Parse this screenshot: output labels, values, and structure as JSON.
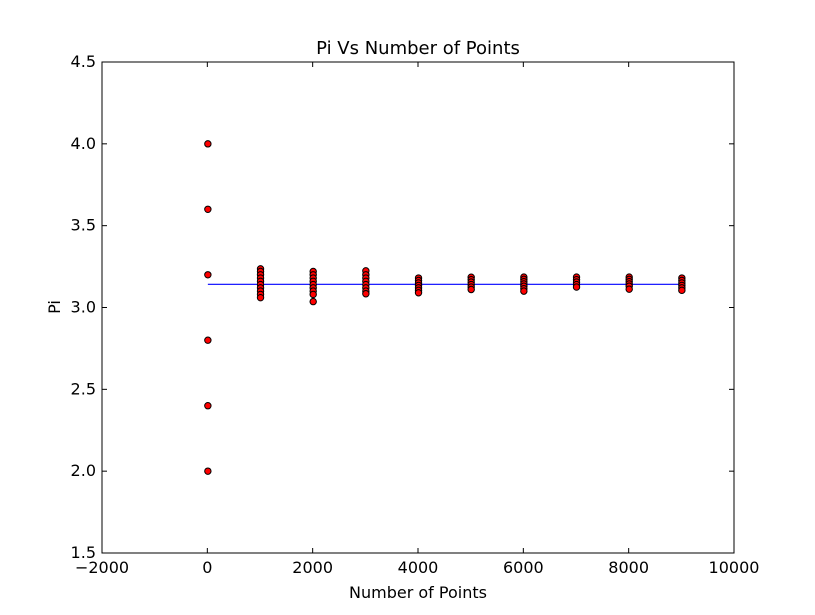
{
  "chart_data": {
    "type": "scatter",
    "title": "Pi Vs Number of Points",
    "xlabel": "Number of Points",
    "ylabel": "Pi",
    "xlim": [
      -2000,
      10000
    ],
    "ylim": [
      1.5,
      4.5
    ],
    "xticks": [
      -2000,
      0,
      2000,
      4000,
      6000,
      8000,
      10000
    ],
    "xtick_labels": [
      "−2000",
      "0",
      "2000",
      "4000",
      "6000",
      "8000",
      "10000"
    ],
    "yticks": [
      1.5,
      2.0,
      2.5,
      3.0,
      3.5,
      4.0,
      4.5
    ],
    "ytick_labels": [
      "1.5",
      "2.0",
      "2.5",
      "3.0",
      "3.5",
      "4.0",
      "4.5"
    ],
    "grid": false,
    "series": [
      {
        "type": "scatter",
        "color": "#ff0000",
        "edgecolor": "#000000",
        "points": [
          [
            10,
            4.0
          ],
          [
            10,
            3.6
          ],
          [
            10,
            3.2
          ],
          [
            10,
            2.8
          ],
          [
            10,
            2.4
          ],
          [
            10,
            2.0
          ],
          [
            1010,
            3.236
          ],
          [
            1010,
            3.22
          ],
          [
            1010,
            3.2
          ],
          [
            1010,
            3.18
          ],
          [
            1010,
            3.16
          ],
          [
            1010,
            3.14
          ],
          [
            1010,
            3.12
          ],
          [
            1010,
            3.1
          ],
          [
            1010,
            3.08
          ],
          [
            1010,
            3.06
          ],
          [
            2010,
            3.22
          ],
          [
            2010,
            3.2
          ],
          [
            2010,
            3.18
          ],
          [
            2010,
            3.16
          ],
          [
            2010,
            3.14
          ],
          [
            2010,
            3.12
          ],
          [
            2010,
            3.1
          ],
          [
            2010,
            3.08
          ],
          [
            2010,
            3.036
          ],
          [
            3010,
            3.224
          ],
          [
            3010,
            3.2
          ],
          [
            3010,
            3.18
          ],
          [
            3010,
            3.16
          ],
          [
            3010,
            3.14
          ],
          [
            3010,
            3.12
          ],
          [
            3010,
            3.1
          ],
          [
            3010,
            3.084
          ],
          [
            4010,
            3.18
          ],
          [
            4010,
            3.165
          ],
          [
            4010,
            3.15
          ],
          [
            4010,
            3.135
          ],
          [
            4010,
            3.12
          ],
          [
            4010,
            3.105
          ],
          [
            4010,
            3.09
          ],
          [
            5010,
            3.185
          ],
          [
            5010,
            3.17
          ],
          [
            5010,
            3.155
          ],
          [
            5010,
            3.14
          ],
          [
            5010,
            3.125
          ],
          [
            5010,
            3.11
          ],
          [
            6010,
            3.186
          ],
          [
            6010,
            3.172
          ],
          [
            6010,
            3.158
          ],
          [
            6010,
            3.144
          ],
          [
            6010,
            3.13
          ],
          [
            6010,
            3.115
          ],
          [
            6010,
            3.1
          ],
          [
            7010,
            3.186
          ],
          [
            7010,
            3.17
          ],
          [
            7010,
            3.155
          ],
          [
            7010,
            3.14
          ],
          [
            7010,
            3.125
          ],
          [
            8010,
            3.186
          ],
          [
            8010,
            3.172
          ],
          [
            8010,
            3.158
          ],
          [
            8010,
            3.144
          ],
          [
            8010,
            3.13
          ],
          [
            8010,
            3.112
          ],
          [
            9010,
            3.18
          ],
          [
            9010,
            3.165
          ],
          [
            9010,
            3.15
          ],
          [
            9010,
            3.135
          ],
          [
            9010,
            3.12
          ],
          [
            9010,
            3.105
          ]
        ]
      },
      {
        "type": "line",
        "color": "#0000ff",
        "x": [
          10,
          9010
        ],
        "y": [
          3.14159,
          3.14159
        ]
      }
    ]
  }
}
